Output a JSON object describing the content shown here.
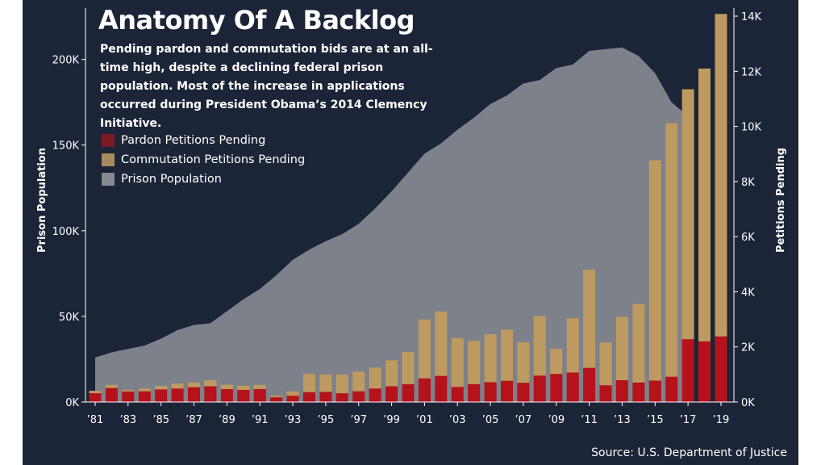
{
  "title": "Anatomy Of A Backlog",
  "subtitle": "Pending pardon and commutation bids are at an all-time high, despite a declining federal prison population. Most of the increase in applications occurred during President Obama’s 2014 Clemency Initiative.",
  "source": "Source: U.S. Department of Justice",
  "colors": {
    "background": "#1c2538",
    "pardon": "#b5121b",
    "commutation": "#bd9a5f",
    "prison": "#868991",
    "legend_pardon": "#7b1a24",
    "legend_commutation": "#a68a5e",
    "legend_prison": "#868991"
  },
  "legend": [
    {
      "label": "Pardon Petitions Pending",
      "color_key": "legend_pardon"
    },
    {
      "label": "Commutation Petitions Pending",
      "color_key": "legend_commutation"
    },
    {
      "label": "Prison Population",
      "color_key": "legend_prison"
    }
  ],
  "chart_data": {
    "type": "bar",
    "title": "Anatomy Of A Backlog",
    "xlabel": "",
    "ylabel_left": "Prison Population",
    "ylabel_right": "Petitions Pending",
    "x": [
      1981,
      1982,
      1983,
      1984,
      1985,
      1986,
      1987,
      1988,
      1989,
      1990,
      1991,
      1992,
      1993,
      1994,
      1995,
      1996,
      1997,
      1998,
      1999,
      2000,
      2001,
      2002,
      2003,
      2004,
      2005,
      2006,
      2007,
      2008,
      2009,
      2010,
      2011,
      2012,
      2013,
      2014,
      2015,
      2016,
      2017,
      2018,
      2019
    ],
    "x_tick_labels": [
      "’81",
      "’83",
      "’85",
      "’87",
      "’89",
      "’91",
      "’93",
      "’95",
      "’97",
      "’99",
      "’01",
      "’03",
      "’05",
      "’07",
      "’09",
      "’11",
      "’13",
      "’15",
      "’17",
      "’19"
    ],
    "x_tick_years": [
      1981,
      1983,
      1985,
      1987,
      1989,
      1991,
      1993,
      1995,
      1997,
      1999,
      2001,
      2003,
      2005,
      2007,
      2009,
      2011,
      2013,
      2015,
      2017,
      2019
    ],
    "y_left_ticks": [
      0,
      50000,
      100000,
      150000,
      200000
    ],
    "y_left_tick_labels": [
      "0K",
      "50K",
      "100K",
      "150K",
      "200K"
    ],
    "y_left_range": [
      0,
      230000
    ],
    "y_right_ticks": [
      0,
      2000,
      4000,
      6000,
      8000,
      10000,
      12000,
      14000
    ],
    "y_right_tick_labels": [
      "0K",
      "2K",
      "4K",
      "6K",
      "8K",
      "10K",
      "12K",
      "14K"
    ],
    "y_right_range": [
      0,
      14000
    ],
    "series": [
      {
        "name": "Pardon Petitions Pending",
        "axis": "right",
        "stack": "bars",
        "values": [
          320,
          510,
          380,
          390,
          460,
          490,
          540,
          570,
          470,
          440,
          470,
          170,
          230,
          360,
          370,
          320,
          390,
          490,
          570,
          650,
          860,
          950,
          550,
          650,
          720,
          770,
          700,
          960,
          1020,
          1070,
          1240,
          610,
          790,
          710,
          780,
          920,
          2280,
          2200,
          2380
        ]
      },
      {
        "name": "Commutation Petitions Pending",
        "axis": "right",
        "stack": "bars",
        "values": [
          90,
          110,
          60,
          100,
          130,
          180,
          170,
          220,
          160,
          150,
          150,
          60,
          160,
          660,
          630,
          680,
          710,
          760,
          940,
          1170,
          2140,
          2340,
          1770,
          1570,
          1740,
          1850,
          1470,
          2160,
          910,
          1970,
          3560,
          1550,
          2300,
          2850,
          7990,
          9200,
          9070,
          9900,
          11700
        ]
      },
      {
        "name": "Prison Population",
        "axis": "left",
        "type": "area",
        "x": [
          1981,
          1982,
          1983,
          1984,
          1985,
          1986,
          1987,
          1988,
          1989,
          1990,
          1991,
          1992,
          1993,
          1994,
          1995,
          1996,
          1997,
          1998,
          1999,
          2000,
          2001,
          2002,
          2003,
          2004,
          2005,
          2006,
          2007,
          2008,
          2009,
          2010,
          2011,
          2012,
          2013,
          2014,
          2015,
          2016,
          2017
        ],
        "values": [
          26000,
          29000,
          31000,
          33000,
          37000,
          42000,
          45000,
          46000,
          53000,
          60000,
          66000,
          74000,
          83000,
          89000,
          94000,
          98000,
          104000,
          113000,
          123000,
          134000,
          145000,
          151000,
          159000,
          166000,
          174000,
          179000,
          186000,
          188000,
          195000,
          197000,
          205000,
          206000,
          207000,
          202000,
          192000,
          175000,
          167000
        ]
      }
    ]
  }
}
